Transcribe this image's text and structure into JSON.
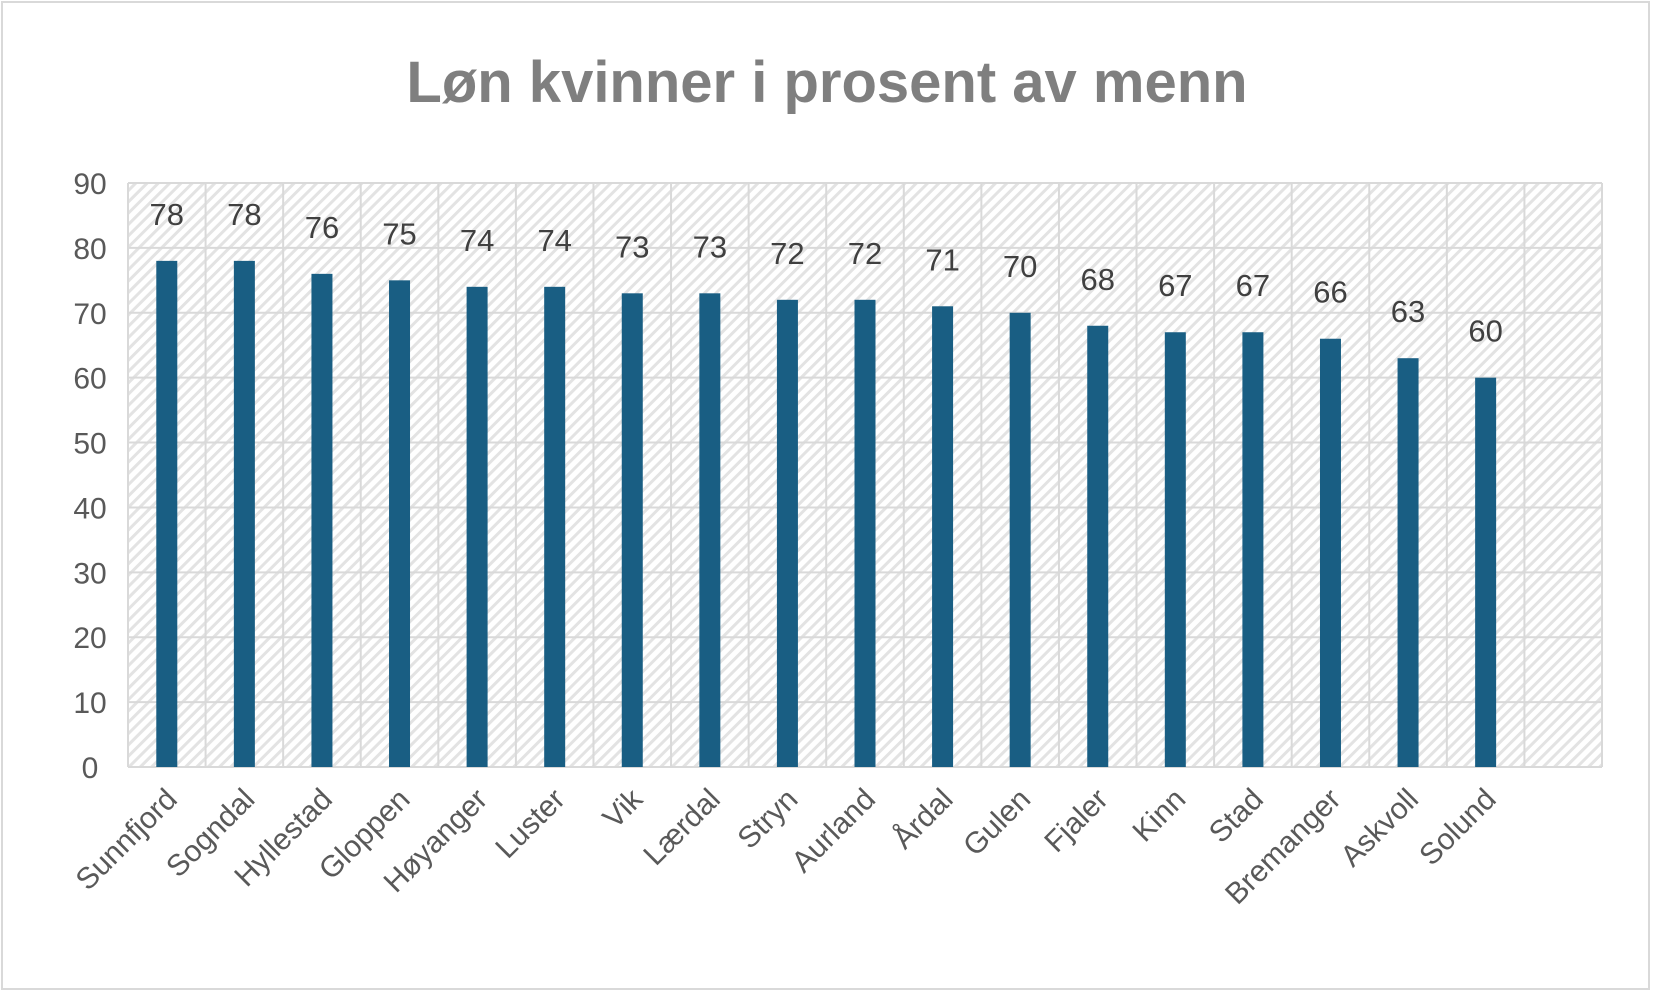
{
  "chart_data": {
    "type": "bar",
    "title": "Løn kvinner i prosent av menn",
    "categories": [
      "Sunnfjord",
      "Sogndal",
      "Hyllestad",
      "Gloppen",
      "Høyanger",
      "Luster",
      "Vik",
      "Lærdal",
      "Stryn",
      "Aurland",
      "Årdal",
      "Gulen",
      "Fjaler",
      "Kinn",
      "Stad",
      "Bremanger",
      "Askvoll",
      "Solund"
    ],
    "values": [
      78,
      78,
      76,
      75,
      74,
      74,
      73,
      73,
      72,
      72,
      71,
      70,
      68,
      67,
      67,
      66,
      63,
      60
    ],
    "xlabel": "",
    "ylabel": "",
    "ylim": [
      0,
      90
    ],
    "yticks": [
      0,
      10,
      20,
      30,
      40,
      50,
      60,
      70,
      80,
      90
    ],
    "grid": true,
    "data_labels": true,
    "legend": "none",
    "colors": {
      "bar": "#195e83",
      "grid": "#d9d9d9",
      "title": "#7f7f7f"
    }
  }
}
